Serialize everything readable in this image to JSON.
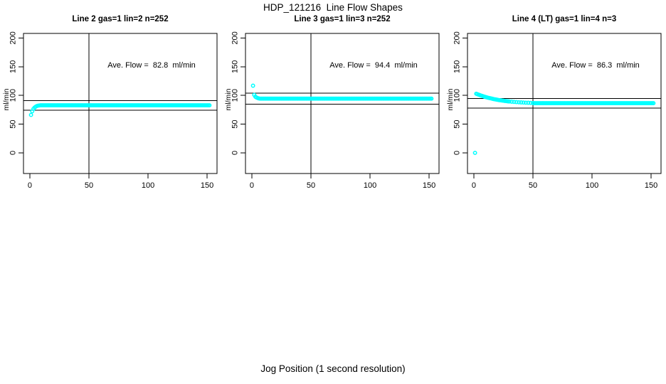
{
  "chart_data": {
    "type": "scatter",
    "title": "HDP_121216  Line Flow Shapes",
    "xlabel": "Jog Position (1 second resolution)",
    "ylabel": "ml/min",
    "point_color": "#00ffff",
    "axis_color": "#000000",
    "x_ticks": [
      0,
      50,
      100,
      150
    ],
    "y_ticks": [
      0,
      50,
      100,
      150,
      200
    ],
    "xlim": [
      -5.4,
      158.4
    ],
    "ylim": [
      -36,
      208
    ],
    "grid": false,
    "legend": "none",
    "panels": [
      {
        "title": "Line 2 gas=1 lin=2 n=252",
        "annotation": "Ave. Flow =  82.8  ml/min",
        "ave_flow": 82.8,
        "n": 252,
        "vline_x": 50,
        "hlines": [
          91.1,
          74.5
        ],
        "transient_points": [
          [
            1,
            66
          ],
          [
            2,
            72.5
          ],
          [
            3,
            76.5
          ],
          [
            4,
            79
          ],
          [
            5,
            80.6
          ],
          [
            6,
            81.6
          ],
          [
            7,
            82.2
          ],
          [
            8,
            82.5
          ]
        ],
        "steady": {
          "x_from": 9,
          "x_to": 152,
          "step": 1,
          "y": 82.8
        }
      },
      {
        "title": "Line 3 gas=1 lin=3 n=252",
        "annotation": "Ave. Flow =  94.4  ml/min",
        "ave_flow": 94.4,
        "n": 252,
        "vline_x": 50,
        "hlines": [
          103.8,
          85.0
        ],
        "transient_points": [
          [
            1,
            117
          ],
          [
            2,
            101
          ],
          [
            3,
            97.8
          ],
          [
            4,
            96.3
          ],
          [
            5,
            95.4
          ],
          [
            6,
            94.8
          ]
        ],
        "steady": {
          "x_from": 7,
          "x_to": 152,
          "step": 1,
          "y": 94.4
        }
      },
      {
        "title": "Line 4 (LT) gas=1 lin=4 n=3",
        "annotation": "Ave. Flow =  86.3  ml/min",
        "ave_flow": 86.3,
        "n": 3,
        "vline_x": 50,
        "hlines": [
          94.9,
          77.7
        ],
        "transient_points": [
          [
            1,
            0
          ],
          [
            2,
            103
          ],
          [
            3,
            102.2
          ],
          [
            4,
            101.4
          ],
          [
            5,
            100.6
          ],
          [
            6,
            99.9
          ],
          [
            7,
            99.2
          ],
          [
            8,
            98.5
          ],
          [
            9,
            97.8
          ],
          [
            10,
            97.2
          ],
          [
            11,
            96.6
          ],
          [
            12,
            96.0
          ],
          [
            13,
            95.5
          ],
          [
            14,
            95.0
          ],
          [
            15,
            94.5
          ],
          [
            16,
            94.0
          ],
          [
            17,
            93.6
          ],
          [
            18,
            93.2
          ],
          [
            19,
            92.8
          ],
          [
            20,
            92.4
          ],
          [
            21,
            92.0
          ],
          [
            22,
            91.7
          ],
          [
            23,
            91.4
          ],
          [
            24,
            91.1
          ],
          [
            25,
            90.8
          ],
          [
            26,
            90.5
          ],
          [
            27,
            90.2
          ],
          [
            28,
            90.0
          ],
          [
            29,
            89.7
          ],
          [
            30,
            89.5
          ],
          [
            32,
            89.1
          ],
          [
            34,
            88.7
          ],
          [
            36,
            88.4
          ],
          [
            38,
            88.1
          ],
          [
            40,
            87.8
          ],
          [
            42,
            87.6
          ],
          [
            44,
            87.4
          ],
          [
            46,
            87.2
          ],
          [
            48,
            87.0
          ],
          [
            50,
            86.8
          ]
        ],
        "steady": {
          "x_from": 51,
          "x_to": 152,
          "step": 1,
          "y": 86.5
        }
      }
    ]
  }
}
